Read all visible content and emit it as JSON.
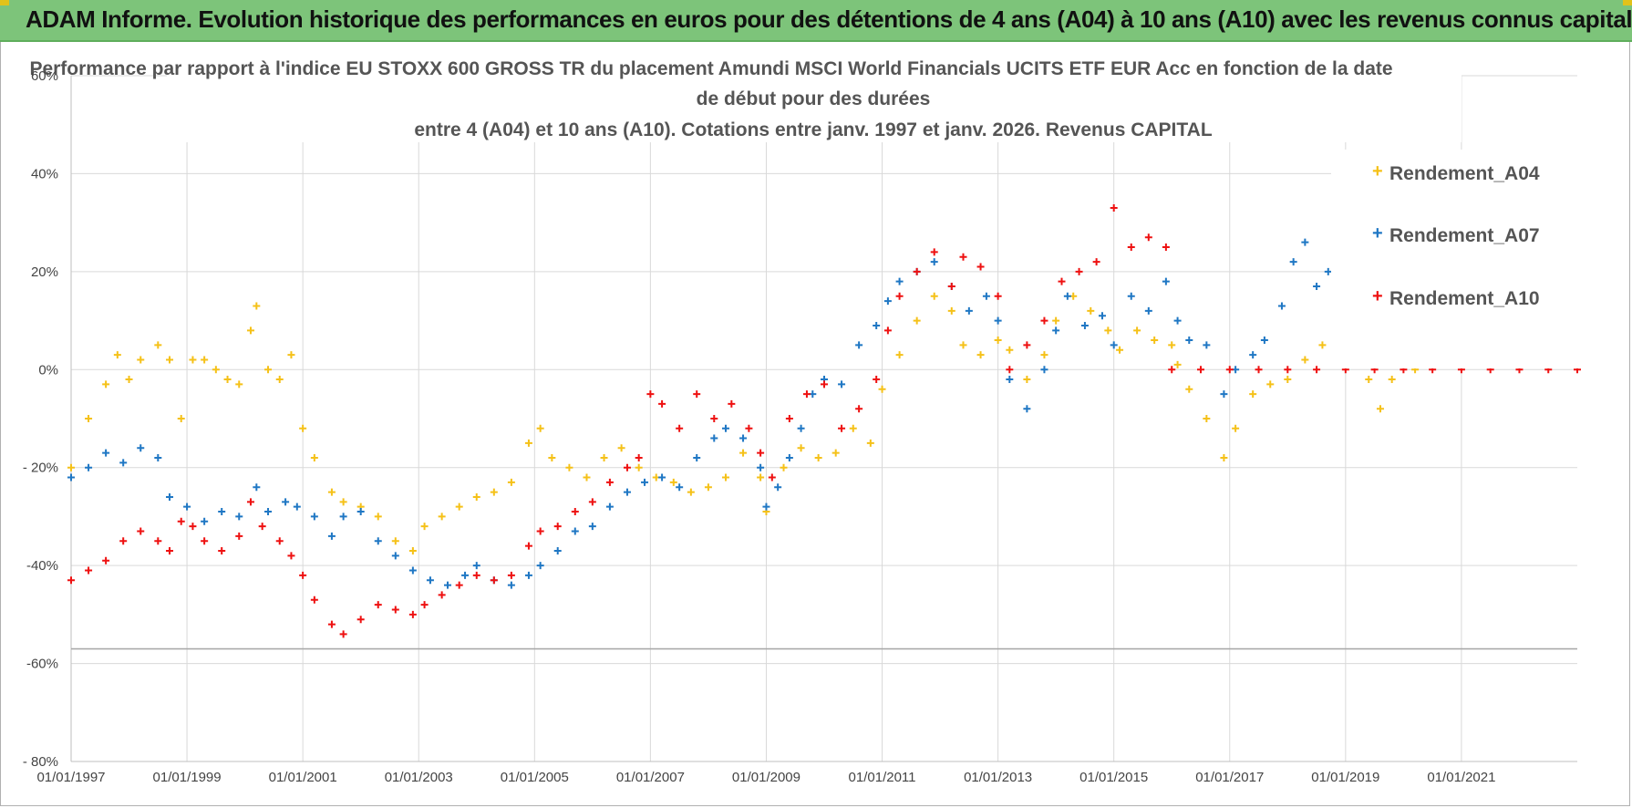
{
  "banner": {
    "title": "ADAM Informe. Evolution historique des performances en euros pour des détentions de 4 ans (A04) à 10 ans (A10) avec les revenus connus capitalisés"
  },
  "colors": {
    "banner_bg": "#7dc47a",
    "A04": "#f5c118",
    "A07": "#1f77c4",
    "A10": "#ee1111",
    "grid": "#d9d9d9"
  },
  "chart_data": {
    "type": "scatter",
    "title_lines": [
      "Performance par rapport à l'indice EU STOXX 600 GROSS TR  du placement Amundi MSCI World Financials UCITS ETF EUR Acc en fonction de la date",
      "de début pour des durées",
      "entre 4 (A04) et 10 ans (A10). Cotations entre janv. 1997 et janv. 2026. Revenus CAPITAL"
    ],
    "x_range": [
      1997.0,
      2023.0
    ],
    "y_range": [
      -80,
      60
    ],
    "y_ticks": [
      {
        "value": 60,
        "label": "60%"
      },
      {
        "value": 40,
        "label": "40%"
      },
      {
        "value": 20,
        "label": "20%"
      },
      {
        "value": 0,
        "label": "0%"
      },
      {
        "value": -20,
        "label": "- 20%"
      },
      {
        "value": -40,
        "label": "-40%"
      },
      {
        "value": -60,
        "label": "-60%"
      },
      {
        "value": -80,
        "label": "- 80%"
      }
    ],
    "x_ticks": [
      {
        "value": 1997,
        "label": "01/01/1997"
      },
      {
        "value": 1999,
        "label": "01/01/1999"
      },
      {
        "value": 2001,
        "label": "01/01/2001"
      },
      {
        "value": 2003,
        "label": "01/01/2003"
      },
      {
        "value": 2005,
        "label": "01/01/2005"
      },
      {
        "value": 2007,
        "label": "01/01/2007"
      },
      {
        "value": 2009,
        "label": "01/01/2009"
      },
      {
        "value": 2011,
        "label": "01/01/2011"
      },
      {
        "value": 2013,
        "label": "01/01/2013"
      },
      {
        "value": 2015,
        "label": "01/01/2015"
      },
      {
        "value": 2017,
        "label": "01/01/2017"
      },
      {
        "value": 2019,
        "label": "01/01/2019"
      },
      {
        "value": 2021,
        "label": "01/01/2021"
      }
    ],
    "reference_line": -57,
    "legend": [
      "Rendement_A04",
      "Rendement_A07",
      "Rendement_A10"
    ],
    "series": [
      {
        "name": "Rendement_A04",
        "points": [
          [
            1997.0,
            -20
          ],
          [
            1997.3,
            -10
          ],
          [
            1997.6,
            -3
          ],
          [
            1997.8,
            3
          ],
          [
            1998.0,
            -2
          ],
          [
            1998.2,
            2
          ],
          [
            1998.5,
            5
          ],
          [
            1998.7,
            2
          ],
          [
            1998.9,
            -10
          ],
          [
            1999.1,
            2
          ],
          [
            1999.3,
            2
          ],
          [
            1999.5,
            0
          ],
          [
            1999.7,
            -2
          ],
          [
            1999.9,
            -3
          ],
          [
            2000.1,
            8
          ],
          [
            2000.2,
            13
          ],
          [
            2000.4,
            0
          ],
          [
            2000.6,
            -2
          ],
          [
            2000.8,
            3
          ],
          [
            2001.0,
            -12
          ],
          [
            2001.2,
            -18
          ],
          [
            2001.5,
            -25
          ],
          [
            2001.7,
            -27
          ],
          [
            2002.0,
            -28
          ],
          [
            2002.3,
            -30
          ],
          [
            2002.6,
            -35
          ],
          [
            2002.9,
            -37
          ],
          [
            2003.1,
            -32
          ],
          [
            2003.4,
            -30
          ],
          [
            2003.7,
            -28
          ],
          [
            2004.0,
            -26
          ],
          [
            2004.3,
            -25
          ],
          [
            2004.6,
            -23
          ],
          [
            2004.9,
            -15
          ],
          [
            2005.1,
            -12
          ],
          [
            2005.3,
            -18
          ],
          [
            2005.6,
            -20
          ],
          [
            2005.9,
            -22
          ],
          [
            2006.2,
            -18
          ],
          [
            2006.5,
            -16
          ],
          [
            2006.8,
            -20
          ],
          [
            2007.1,
            -22
          ],
          [
            2007.4,
            -23
          ],
          [
            2007.7,
            -25
          ],
          [
            2008.0,
            -24
          ],
          [
            2008.3,
            -22
          ],
          [
            2008.6,
            -17
          ],
          [
            2008.9,
            -22
          ],
          [
            2009.0,
            -29
          ],
          [
            2009.3,
            -20
          ],
          [
            2009.6,
            -16
          ],
          [
            2009.9,
            -18
          ],
          [
            2010.2,
            -17
          ],
          [
            2010.5,
            -12
          ],
          [
            2010.8,
            -15
          ],
          [
            2011.0,
            -4
          ],
          [
            2011.3,
            3
          ],
          [
            2011.6,
            10
          ],
          [
            2011.9,
            15
          ],
          [
            2012.2,
            12
          ],
          [
            2012.4,
            5
          ],
          [
            2012.7,
            3
          ],
          [
            2013.0,
            6
          ],
          [
            2013.2,
            4
          ],
          [
            2013.5,
            -2
          ],
          [
            2013.8,
            3
          ],
          [
            2014.0,
            10
          ],
          [
            2014.3,
            15
          ],
          [
            2014.6,
            12
          ],
          [
            2014.9,
            8
          ],
          [
            2015.1,
            4
          ],
          [
            2015.4,
            8
          ],
          [
            2015.7,
            6
          ],
          [
            2016.0,
            5
          ],
          [
            2016.1,
            1
          ],
          [
            2016.3,
            -4
          ],
          [
            2016.6,
            -10
          ],
          [
            2016.9,
            -18
          ],
          [
            2017.1,
            -12
          ],
          [
            2017.4,
            -5
          ],
          [
            2017.7,
            -3
          ],
          [
            2018.0,
            -2
          ],
          [
            2018.3,
            2
          ],
          [
            2018.6,
            5
          ],
          [
            2018.9,
            8
          ],
          [
            2019.1,
            6
          ],
          [
            2019.4,
            -2
          ],
          [
            2019.6,
            -8
          ],
          [
            2019.8,
            -2
          ],
          [
            2020.0,
            2
          ],
          [
            2020.2,
            0
          ],
          [
            2020.4,
            6
          ]
        ]
      },
      {
        "name": "Rendement_A07",
        "points": [
          [
            1997.0,
            -22
          ],
          [
            1997.3,
            -20
          ],
          [
            1997.6,
            -17
          ],
          [
            1997.9,
            -19
          ],
          [
            1998.2,
            -16
          ],
          [
            1998.5,
            -18
          ],
          [
            1998.7,
            -26
          ],
          [
            1999.0,
            -28
          ],
          [
            1999.3,
            -31
          ],
          [
            1999.6,
            -29
          ],
          [
            1999.9,
            -30
          ],
          [
            2000.2,
            -24
          ],
          [
            2000.4,
            -29
          ],
          [
            2000.7,
            -27
          ],
          [
            2000.9,
            -28
          ],
          [
            2001.2,
            -30
          ],
          [
            2001.5,
            -34
          ],
          [
            2001.7,
            -30
          ],
          [
            2002.0,
            -29
          ],
          [
            2002.3,
            -35
          ],
          [
            2002.6,
            -38
          ],
          [
            2002.9,
            -41
          ],
          [
            2003.2,
            -43
          ],
          [
            2003.5,
            -44
          ],
          [
            2003.8,
            -42
          ],
          [
            2004.0,
            -40
          ],
          [
            2004.3,
            -43
          ],
          [
            2004.6,
            -44
          ],
          [
            2004.9,
            -42
          ],
          [
            2005.1,
            -40
          ],
          [
            2005.4,
            -37
          ],
          [
            2005.7,
            -33
          ],
          [
            2006.0,
            -32
          ],
          [
            2006.3,
            -28
          ],
          [
            2006.6,
            -25
          ],
          [
            2006.9,
            -23
          ],
          [
            2007.2,
            -22
          ],
          [
            2007.5,
            -24
          ],
          [
            2007.8,
            -18
          ],
          [
            2008.1,
            -14
          ],
          [
            2008.3,
            -12
          ],
          [
            2008.6,
            -14
          ],
          [
            2008.9,
            -20
          ],
          [
            2009.0,
            -28
          ],
          [
            2009.2,
            -24
          ],
          [
            2009.4,
            -18
          ],
          [
            2009.6,
            -12
          ],
          [
            2009.8,
            -5
          ],
          [
            2010.0,
            -2
          ],
          [
            2010.3,
            -3
          ],
          [
            2010.6,
            5
          ],
          [
            2010.9,
            9
          ],
          [
            2011.1,
            14
          ],
          [
            2011.3,
            18
          ],
          [
            2011.6,
            20
          ],
          [
            2011.9,
            22
          ],
          [
            2012.2,
            17
          ],
          [
            2012.5,
            12
          ],
          [
            2012.8,
            15
          ],
          [
            2013.0,
            10
          ],
          [
            2013.2,
            -2
          ],
          [
            2013.5,
            -8
          ],
          [
            2013.8,
            0
          ],
          [
            2014.0,
            8
          ],
          [
            2014.2,
            15
          ],
          [
            2014.5,
            9
          ],
          [
            2014.8,
            11
          ],
          [
            2015.0,
            5
          ],
          [
            2015.3,
            15
          ],
          [
            2015.6,
            12
          ],
          [
            2015.9,
            18
          ],
          [
            2016.1,
            10
          ],
          [
            2016.3,
            6
          ],
          [
            2016.6,
            5
          ],
          [
            2016.9,
            -5
          ],
          [
            2017.1,
            0
          ],
          [
            2017.4,
            3
          ],
          [
            2017.6,
            6
          ],
          [
            2017.9,
            13
          ],
          [
            2018.1,
            22
          ],
          [
            2018.3,
            26
          ],
          [
            2018.5,
            17
          ],
          [
            2018.7,
            20
          ],
          [
            2018.9,
            17
          ]
        ]
      },
      {
        "name": "Rendement_A10",
        "points": [
          [
            1997.0,
            -43
          ],
          [
            1997.3,
            -41
          ],
          [
            1997.6,
            -39
          ],
          [
            1997.9,
            -35
          ],
          [
            1998.2,
            -33
          ],
          [
            1998.5,
            -35
          ],
          [
            1998.7,
            -37
          ],
          [
            1998.9,
            -31
          ],
          [
            1999.1,
            -32
          ],
          [
            1999.3,
            -35
          ],
          [
            1999.6,
            -37
          ],
          [
            1999.9,
            -34
          ],
          [
            2000.1,
            -27
          ],
          [
            2000.3,
            -32
          ],
          [
            2000.6,
            -35
          ],
          [
            2000.8,
            -38
          ],
          [
            2001.0,
            -42
          ],
          [
            2001.2,
            -47
          ],
          [
            2001.5,
            -52
          ],
          [
            2001.7,
            -54
          ],
          [
            2002.0,
            -51
          ],
          [
            2002.3,
            -48
          ],
          [
            2002.6,
            -49
          ],
          [
            2002.9,
            -50
          ],
          [
            2003.1,
            -48
          ],
          [
            2003.4,
            -46
          ],
          [
            2003.7,
            -44
          ],
          [
            2004.0,
            -42
          ],
          [
            2004.3,
            -43
          ],
          [
            2004.6,
            -42
          ],
          [
            2004.9,
            -36
          ],
          [
            2005.1,
            -33
          ],
          [
            2005.4,
            -32
          ],
          [
            2005.7,
            -29
          ],
          [
            2006.0,
            -27
          ],
          [
            2006.3,
            -23
          ],
          [
            2006.6,
            -20
          ],
          [
            2006.8,
            -18
          ],
          [
            2007.0,
            -5
          ],
          [
            2007.2,
            -7
          ],
          [
            2007.5,
            -12
          ],
          [
            2007.8,
            -5
          ],
          [
            2008.1,
            -10
          ],
          [
            2008.4,
            -7
          ],
          [
            2008.7,
            -12
          ],
          [
            2008.9,
            -17
          ],
          [
            2009.1,
            -22
          ],
          [
            2009.4,
            -10
          ],
          [
            2009.7,
            -5
          ],
          [
            2010.0,
            -3
          ],
          [
            2010.3,
            -12
          ],
          [
            2010.6,
            -8
          ],
          [
            2010.9,
            -2
          ],
          [
            2011.1,
            8
          ],
          [
            2011.3,
            15
          ],
          [
            2011.6,
            20
          ],
          [
            2011.9,
            24
          ],
          [
            2012.2,
            17
          ],
          [
            2012.4,
            23
          ],
          [
            2012.7,
            21
          ],
          [
            2013.0,
            15
          ],
          [
            2013.2,
            0
          ],
          [
            2013.5,
            5
          ],
          [
            2013.8,
            10
          ],
          [
            2014.1,
            18
          ],
          [
            2014.4,
            20
          ],
          [
            2014.7,
            22
          ],
          [
            2015.0,
            33
          ],
          [
            2015.3,
            25
          ],
          [
            2015.6,
            27
          ],
          [
            2015.9,
            25
          ],
          [
            2016.0,
            0
          ],
          [
            2016.5,
            0
          ],
          [
            2017.0,
            0
          ],
          [
            2017.5,
            0
          ],
          [
            2018.0,
            0
          ],
          [
            2018.5,
            0
          ],
          [
            2019.0,
            0
          ],
          [
            2019.5,
            0
          ],
          [
            2020.0,
            0
          ],
          [
            2020.5,
            0
          ],
          [
            2021.0,
            0
          ],
          [
            2021.5,
            0
          ],
          [
            2022.0,
            0
          ],
          [
            2022.5,
            0
          ],
          [
            2023.0,
            0
          ]
        ]
      }
    ]
  }
}
